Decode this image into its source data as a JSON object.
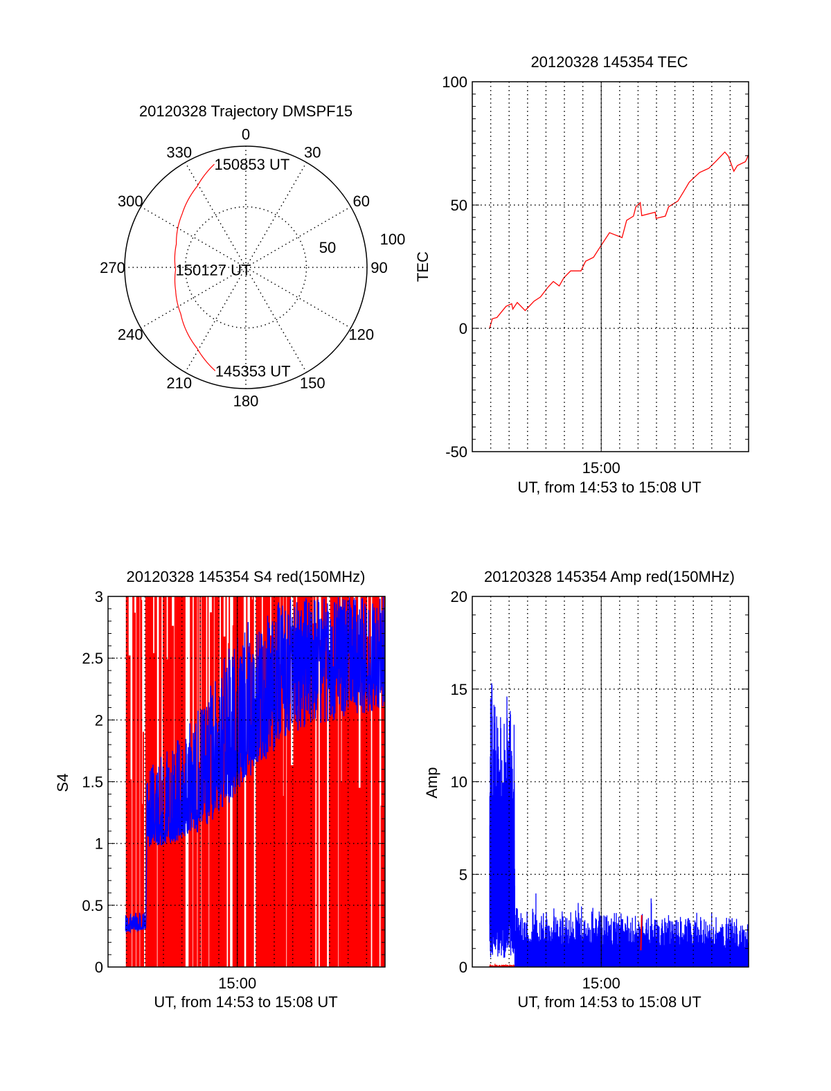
{
  "chart_data": [
    {
      "type": "polar",
      "title": "20120328 Trajectory DMSPF15",
      "angle_ticks": [
        "0",
        "30",
        "60",
        "90",
        "120",
        "150",
        "180",
        "210",
        "240",
        "270",
        "300",
        "330"
      ],
      "radial_ticks": [
        "50",
        "100"
      ],
      "rlim": [
        0,
        100
      ],
      "series": [
        {
          "name": "trajectory",
          "color": "#ff0000",
          "points": [
            [
              196.5,
              89
            ],
            [
              211,
              78
            ],
            [
              234.5,
              66
            ],
            [
              251.7,
              61
            ],
            [
              268,
              58
            ],
            [
              288.5,
              60.5
            ],
            [
              310,
              68.6
            ],
            [
              329,
              78
            ],
            [
              343,
              89
            ]
          ]
        }
      ],
      "annotations": [
        {
          "label": "150853 UT",
          "az": 343,
          "r": 89
        },
        {
          "label": "150127 UT",
          "az": 268,
          "r": 58
        },
        {
          "label": "145353 UT",
          "az": 196.5,
          "r": 89
        }
      ]
    },
    {
      "type": "line",
      "title": "20120328 145354 TEC",
      "xlabel": "UT, from 14:53 to 15:08 UT",
      "ylabel": "TEC",
      "x_units": "minutes relative to 15:00 UT",
      "xlim": [
        -7,
        8
      ],
      "ylim": [
        -50,
        100
      ],
      "xticks": [
        {
          "value": 0,
          "label": "15:00"
        }
      ],
      "yticks": [
        {
          "value": -50,
          "label": "-50"
        },
        {
          "value": 0,
          "label": "0"
        },
        {
          "value": 50,
          "label": "50"
        },
        {
          "value": 100,
          "label": "100"
        }
      ],
      "yminor": 5,
      "series": [
        {
          "name": "TEC",
          "color": "#ff0000",
          "points": [
            [
              -6.06,
              0
            ],
            [
              -5.91,
              3.9
            ],
            [
              -5.66,
              4.4
            ],
            [
              -5.17,
              8.9
            ],
            [
              -4.86,
              10
            ],
            [
              -4.8,
              7.8
            ],
            [
              -4.56,
              10.5
            ],
            [
              -4.13,
              7.2
            ],
            [
              -3.65,
              11
            ],
            [
              -3.3,
              12.7
            ],
            [
              -2.9,
              16.6
            ],
            [
              -2.6,
              19
            ],
            [
              -2.28,
              17.2
            ],
            [
              -2.03,
              20.5
            ],
            [
              -1.66,
              23.3
            ],
            [
              -1.1,
              23.3
            ],
            [
              -0.85,
              27.2
            ],
            [
              -0.42,
              28.8
            ],
            [
              0.01,
              33.8
            ],
            [
              0.45,
              38.8
            ],
            [
              0.82,
              37.7
            ],
            [
              1.13,
              36.8
            ],
            [
              1.38,
              43.8
            ],
            [
              1.75,
              45.5
            ],
            [
              1.88,
              49.3
            ],
            [
              2.12,
              51
            ],
            [
              2.2,
              45.7
            ],
            [
              2.93,
              47.1
            ],
            [
              2.98,
              44.6
            ],
            [
              3.48,
              45.5
            ],
            [
              3.66,
              49.3
            ],
            [
              4.16,
              51.6
            ],
            [
              4.47,
              55.4
            ],
            [
              4.78,
              59.3
            ],
            [
              5.34,
              63.2
            ],
            [
              5.84,
              64.9
            ],
            [
              6.21,
              67.6
            ],
            [
              6.71,
              71.5
            ],
            [
              6.9,
              69.8
            ],
            [
              7.2,
              63.7
            ],
            [
              7.39,
              66
            ],
            [
              7.83,
              67.6
            ],
            [
              8.0,
              70.4
            ]
          ]
        }
      ]
    },
    {
      "type": "line",
      "title": "20120328 145354 S4 red(150MHz)",
      "xlabel": "UT, from 14:53 to 15:08 UT",
      "ylabel": "S4",
      "x_units": "minutes relative to 15:00 UT",
      "xlim": [
        -7,
        8
      ],
      "ylim": [
        0,
        3
      ],
      "xticks": [
        {
          "value": 0,
          "label": "15:00"
        }
      ],
      "yticks": [
        {
          "value": 0,
          "label": "0"
        },
        {
          "value": 0.5,
          "label": "0.5"
        },
        {
          "value": 1,
          "label": "1"
        },
        {
          "value": 1.5,
          "label": "1.5"
        },
        {
          "value": 2,
          "label": "2"
        },
        {
          "value": 2.5,
          "label": "2.5"
        },
        {
          "value": 3,
          "label": "3"
        }
      ],
      "yminor": 0.1,
      "series": [
        {
          "name": "S4 red",
          "color": "#ff0000",
          "style": "spikes",
          "x_range": [
            -6.05,
            8
          ],
          "spike_fraction": 0.55,
          "envelope": [
            [
              -6.05,
              0,
              1.3,
              3
            ],
            [
              8,
              0,
              1.3,
              3
            ]
          ]
        },
        {
          "name": "S4 blue",
          "color": "#0000ff",
          "style": "noise",
          "x_range": [
            -6.05,
            8
          ],
          "envelope": [
            [
              -6.05,
              0.28,
              0.3,
              0.42
            ],
            [
              -4.95,
              0.3,
              0.33,
              0.47
            ],
            [
              -4.9,
              0.95,
              1.1,
              1.6
            ],
            [
              -3.5,
              1.0,
              1.1,
              1.8
            ],
            [
              -2,
              1.1,
              1.3,
              2.1
            ],
            [
              -0.5,
              1.3,
              1.6,
              2.6
            ],
            [
              1,
              1.6,
              2.0,
              2.9
            ],
            [
              3,
              1.9,
              2.4,
              3.0
            ],
            [
              8,
              2.1,
              2.5,
              3.0
            ]
          ]
        }
      ]
    },
    {
      "type": "line",
      "title": "20120328 145354 Amp red(150MHz)",
      "xlabel": "UT, from 14:53 to 15:08 UT",
      "ylabel": "Amp",
      "x_units": "minutes relative to 15:00 UT",
      "xlim": [
        -7,
        8
      ],
      "ylim": [
        0,
        20
      ],
      "xticks": [
        {
          "value": 0,
          "label": "15:00"
        }
      ],
      "yticks": [
        {
          "value": 0,
          "label": "0"
        },
        {
          "value": 5,
          "label": "5"
        },
        {
          "value": 10,
          "label": "10"
        },
        {
          "value": 15,
          "label": "15"
        },
        {
          "value": 20,
          "label": "20"
        }
      ],
      "yminor": 1,
      "series": [
        {
          "name": "Amp red",
          "color": "#ff0000",
          "style": "bars",
          "x_range": [
            -6.05,
            -4.7
          ],
          "envelope": [
            [
              -6.05,
              0,
              0.05,
              0.15
            ],
            [
              -4.7,
              0,
              0.05,
              0.15
            ]
          ]
        },
        {
          "name": "Amp blue",
          "color": "#0000ff",
          "style": "bars",
          "x_range": [
            -6.05,
            8
          ],
          "envelope": [
            [
              -6.05,
              1.5,
              9,
              15.5
            ],
            [
              -4.72,
              1.5,
              9,
              15
            ],
            [
              -4.68,
              0,
              1.3,
              3.2
            ],
            [
              0,
              0,
              1.2,
              3
            ],
            [
              8,
              0,
              1.0,
              2.6
            ]
          ]
        },
        {
          "name": "Amp red spike",
          "color": "#ff0000",
          "style": "points",
          "points": [
            [
              2.15,
              0.9
            ],
            [
              2.2,
              2.8
            ]
          ]
        }
      ]
    }
  ]
}
